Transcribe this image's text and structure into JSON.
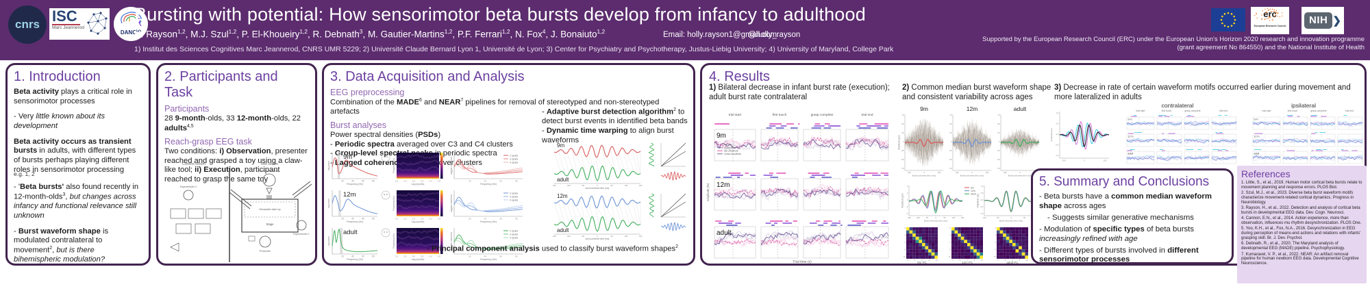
{
  "header": {
    "title": "Bursting with potential: How sensorimotor beta bursts develop from infancy to adulthood",
    "authors": [
      {
        "t": "H. Rayson"
      },
      {
        "t": "1,2",
        "sup": 1
      },
      {
        "t": ", M.J. Szul"
      },
      {
        "t": "1,2",
        "sup": 1
      },
      {
        "t": ", P. El-Khoueiry"
      },
      {
        "t": "1,2",
        "sup": 1
      },
      {
        "t": ", R. Debnath"
      },
      {
        "t": "3",
        "sup": 1
      },
      {
        "t": ", M. Gautier-Martins"
      },
      {
        "t": "1,2",
        "sup": 1
      },
      {
        "t": ", P.F. Ferrari"
      },
      {
        "t": "1,2",
        "sup": 1
      },
      {
        "t": ", N. Fox"
      },
      {
        "t": "4",
        "sup": 1
      },
      {
        "t": ", J. Bonaiuto"
      },
      {
        "t": "1,2",
        "sup": 1
      }
    ],
    "email": "Email: holly.rayson1@gmail.com",
    "twitter": "@holly_rayson",
    "affiliations": "1) Institut des Sciences Cognitives Marc Jeannerod, CNRS UMR 5229; 2) Université Claude Bernard Lyon 1, Université de Lyon; 3) Center for Psychiatry and Psychotherapy, Justus-Liebig University; 4) University of Maryland, College Park",
    "support": "Supported by the European Research Council (ERC) under the European Union's Horizon 2020 research and innovation programme (grant agreement No 864550) and the National Institute of Health",
    "logos": {
      "cnrs": "cnrs",
      "isc": "ISC",
      "isc_sub": "Marc Jeannerod",
      "danc": "DANC",
      "danc_sup": "lab",
      "erc": "erc",
      "erc_sub": "European Research Council",
      "nih": "NIH",
      "nih_chev": "❯"
    }
  },
  "intro": {
    "title": "1. Introduction",
    "p1": [
      {
        "t": "Beta activity",
        "b": 1
      },
      {
        "t": " plays a critical role in sensorimotor processes"
      }
    ],
    "p2": [
      {
        "t": "- Very "
      },
      {
        "t": "little known about its development",
        "i": 1
      }
    ],
    "p3": [
      {
        "t": "Beta activity occurs as transient bursts",
        "b": 1
      },
      {
        "t": " in adults, with different types of bursts perhaps playing different roles in sensorimotor processing"
      }
    ],
    "p3_note": [
      {
        "t": "e.g. 1, 2"
      }
    ],
    "p4": [
      {
        "t": "- '"
      },
      {
        "t": "Beta bursts'",
        "b": 1
      },
      {
        "t": " also found recently in 12-month-olds"
      },
      {
        "t": "3",
        "sup": 1
      },
      {
        "t": ", "
      },
      {
        "t": "but changes across infancy and functional relevance still unknown",
        "i": 1
      }
    ],
    "p5": [
      {
        "t": "- "
      },
      {
        "t": "Burst waveform shape",
        "b": 1
      },
      {
        "t": " is modulated contralateral to movement"
      },
      {
        "t": "2",
        "sup": 1
      },
      {
        "t": ", "
      },
      {
        "t": "but is there bihemispheric modulation?",
        "i": 1
      }
    ]
  },
  "participants": {
    "title": "2. Participants and Task",
    "sub1": "Participants",
    "p1": [
      {
        "t": "28 "
      },
      {
        "t": "9-month",
        "b": 1
      },
      {
        "t": "-olds, 33 "
      },
      {
        "t": "12-month",
        "b": 1
      },
      {
        "t": "-olds, 22 "
      },
      {
        "t": "adults",
        "b": 1
      },
      {
        "t": "4,5",
        "sup": 1
      }
    ],
    "sub2": "Reach-grasp EEG task",
    "p2": [
      {
        "t": "Two conditions: "
      },
      {
        "t": "i) Observation",
        "b": 1
      },
      {
        "t": ", presenter reached and grasped a toy using a claw-like tool; "
      },
      {
        "t": "ii) Execution",
        "b": 1
      },
      {
        "t": ", participant reached to grasp the same toy"
      }
    ]
  },
  "analysis": {
    "title": "3. Data Acquisition and Analysis",
    "sub1": "EEG preprocessing",
    "p1": [
      {
        "t": "Combination of the "
      },
      {
        "t": "MADE",
        "b": 1
      },
      {
        "t": "6",
        "sup": 1
      },
      {
        "t": " and "
      },
      {
        "t": "NEAR",
        "b": 1
      },
      {
        "t": "7",
        "sup": 1
      },
      {
        "t": " pipelines for removal of stereotyped and non-stereotyped artefacts"
      }
    ],
    "sub2": "Burst analyses",
    "p2": [
      {
        "t": "Power spectral densities ("
      },
      {
        "t": "PSDs",
        "b": 1
      },
      {
        "t": ")"
      }
    ],
    "b1": [
      {
        "t": "- "
      },
      {
        "t": "Periodic spectra",
        "b": 1
      },
      {
        "t": " averaged over C3 and C4 clusters"
      }
    ],
    "b2": [
      {
        "t": "- "
      },
      {
        "t": "Group-level spectral peaks",
        "b": 1
      },
      {
        "t": " in periodic spectra"
      }
    ],
    "b3": [
      {
        "t": "- "
      },
      {
        "t": "Lagged coherence",
        "b": 1
      },
      {
        "t": " averaged over clusters"
      }
    ],
    "rb1": [
      {
        "t": "- "
      },
      {
        "t": "Adaptive burst detection algorithm",
        "b": 1
      },
      {
        "t": "2",
        "sup": 1
      },
      {
        "t": " to detect burst events in identified beta bands"
      }
    ],
    "rb2": [
      {
        "t": "- "
      },
      {
        "t": "Dynamic time warping",
        "b": 1
      },
      {
        "t": " to align burst waveforms"
      }
    ],
    "pca": [
      {
        "t": "- "
      },
      {
        "t": "Principal component analysis",
        "b": 1
      },
      {
        "t": " used to classify burst waveform shapes"
      },
      {
        "t": "2",
        "sup": 1
      }
    ]
  },
  "results": {
    "title": "4. Results",
    "r1": [
      {
        "t": "1)",
        "b": 1
      },
      {
        "t": " Bilateral decrease in infant burst rate (execution); adult burst rate contralateral"
      }
    ],
    "r2": [
      {
        "t": "2)",
        "b": 1
      },
      {
        "t": " Common median burst waveform shape and consistent variability across ages"
      }
    ],
    "r3": [
      {
        "t": "3)",
        "b": 1
      },
      {
        "t": " Decrease in rate of certain waveform motifs occurred earlier during movement and more lateralized in adults"
      }
    ]
  },
  "summary": {
    "title": "5. Summary and Conclusions",
    "s1": [
      {
        "t": "- Beta bursts have a "
      },
      {
        "t": "common median waveform shape",
        "b": 1
      },
      {
        "t": " across ages"
      }
    ],
    "s2": [
      {
        "t": "- Suggests similar generative mechanisms"
      }
    ],
    "s3": [
      {
        "t": "- Modulation of "
      },
      {
        "t": "specific types",
        "b": 1
      },
      {
        "t": " of beta bursts "
      },
      {
        "t": "increasingly refined with age",
        "i": 1
      }
    ],
    "s4": [
      {
        "t": "- Different types of bursts involved in "
      },
      {
        "t": "different sensorimotor processes",
        "b": 1
      }
    ]
  },
  "references": {
    "title": "References",
    "items": [
      "1. Little, S., et al., 2019. Human motor cortical beta bursts relate to movement planning and response errors. PLOS Biol.",
      "2. Szul, M.J., et al., 2023. Diverse beta burst waveform motifs characterize movement-related cortical dynamics. Progress in Neurobiology.",
      "3. Rayson, H., et al., 2022. Detection and analysis of cortical beta bursts in developmental EEG data. Dev. Cogn. Neurosci.",
      "4. Cannon, E.N., et al., 2014. Action experience, more than observation, influences mu rhythm desynchronization. PLOS One.",
      "5. Yoo, K.H., et al., Fox, N.A., 2016. Desynchronization in EEG during perception of means-end actions and relations with infants' grasping skill. Br. J. Dev. Psychol.",
      "6. Debnath, R., et al., 2020. The Maryland analysis of developmental EEG (MADE) pipeline. Psychophysiology.",
      "7. Kumaravel, V. P., et al., 2022. NEAR: An artifact removal pipeline for human newborn EEG data. Developmental Cognitive Neuroscience."
    ]
  },
  "figures": {
    "ages": [
      "9m",
      "12m",
      "adult"
    ],
    "age_colors": [
      "#d95c5c",
      "#6b93d6",
      "#3fae5a"
    ],
    "diagram": [
      "Control Room",
      "Test Room",
      "Parent and Infant",
      "Retractable table top",
      "Stage",
      "Presenter",
      "Experimenter 1",
      "Experimenter 2"
    ],
    "psd": {
      "xlabel": "Frequency (Hz)",
      "ylabel": "log power",
      "xticks": [
        "20",
        "40",
        "60",
        "80"
      ]
    },
    "lag": {
      "xlabel": "Lag (cycles)",
      "ylabel": "Frequency (Hz)",
      "xticks": [
        "2.0",
        "2.5",
        "3.0",
        "3.5",
        "4.0",
        "4.5"
      ]
    },
    "coh": {
      "xlabel": "Frequency (Hz)",
      "ylabel": "Lagged coherence",
      "legend": [
        "2 cycles",
        "3 cycles",
        "4 cycles"
      ],
      "xticks": [
        "20",
        "40",
        "60",
        "80"
      ]
    },
    "dtw": {
      "xlabel": "burst-centered time (ms)",
      "xticks": [
        "-150",
        "-100",
        "-50",
        "0",
        "50",
        "100",
        "150"
      ],
      "pairs": [
        [
          "9m",
          "adult"
        ],
        [
          "12m",
          "adult"
        ]
      ]
    },
    "trial": {
      "markers": [
        "trial start",
        "first touch",
        "grasp complete",
        "trial end"
      ],
      "legend": [
        "ipsi rate",
        "contra rate",
        "ipsi amplitude",
        "contra amplitude"
      ],
      "xlabel": "Trial time (s)",
      "ylabel": "Amplitude (%)"
    },
    "density": {
      "xlabel": "Burst-centered time (ms)",
      "ylabel": "Amplitude (μV)",
      "yticks": [
        "75",
        "50",
        "25",
        "0",
        "-25",
        "-50",
        "-75"
      ],
      "xticks": [
        "-100",
        "0",
        "100"
      ]
    },
    "overlay": {
      "ylabel_left": "Amplitude (μV)",
      "ylabel_right": "Amplitude (au)",
      "xlabel": "Burst-centered time (ms)"
    },
    "matrices": {
      "labels": [
        "9m PC",
        "12m PC",
        "adult PC"
      ]
    },
    "lateral": {
      "panels": [
        "contralateral",
        "ipsilateral"
      ],
      "rows": [
        "9 m",
        "12 m",
        "adult"
      ]
    }
  }
}
